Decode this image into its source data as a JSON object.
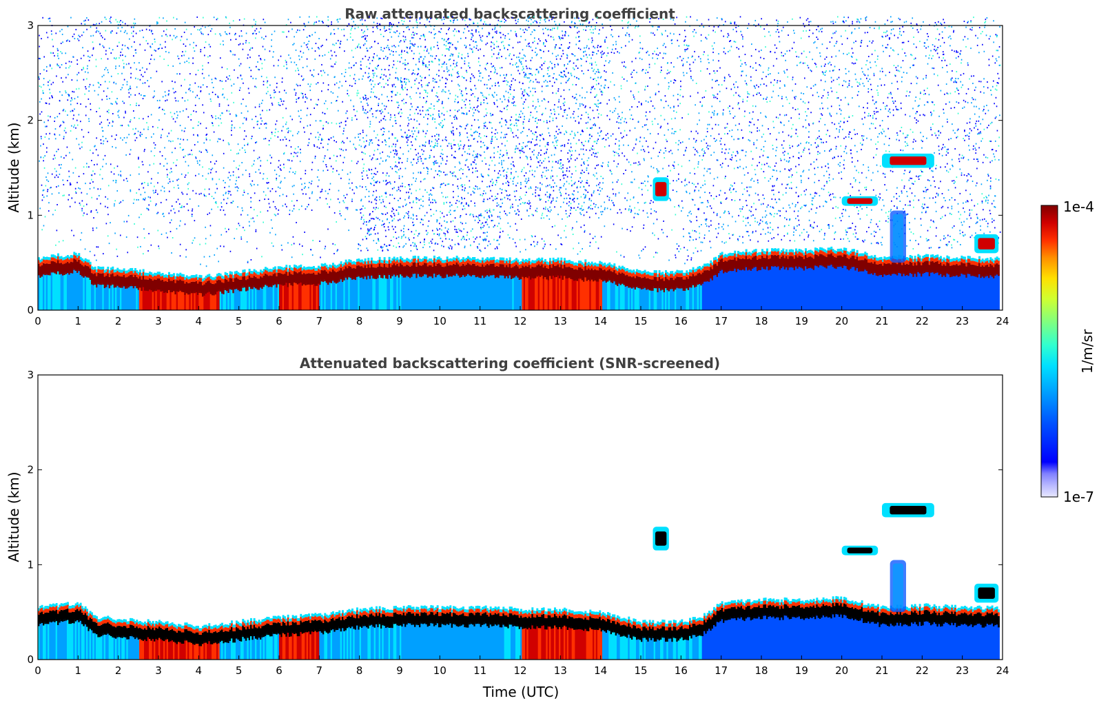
{
  "chart_data": [
    {
      "type": "heatmap",
      "title": "Raw attenuated backscattering coefficient",
      "ylabel": "Altitude (km)",
      "xlabel": "",
      "xlim": [
        0,
        24
      ],
      "ylim": [
        0,
        3
      ],
      "xticks": [
        0,
        1,
        2,
        3,
        4,
        5,
        6,
        7,
        8,
        9,
        10,
        11,
        12,
        13,
        14,
        15,
        16,
        17,
        18,
        19,
        20,
        21,
        22,
        23,
        24
      ],
      "yticks": [
        0,
        1,
        2,
        3
      ],
      "boundary_layer_top_km": [
        [
          0,
          0.5
        ],
        [
          1,
          0.55
        ],
        [
          1.4,
          0.4
        ],
        [
          2,
          0.38
        ],
        [
          3,
          0.35
        ],
        [
          4,
          0.3
        ],
        [
          5,
          0.35
        ],
        [
          6,
          0.4
        ],
        [
          7,
          0.42
        ],
        [
          8,
          0.48
        ],
        [
          9,
          0.5
        ],
        [
          10,
          0.5
        ],
        [
          11,
          0.5
        ],
        [
          12,
          0.48
        ],
        [
          13,
          0.48
        ],
        [
          14,
          0.45
        ],
        [
          15,
          0.35
        ],
        [
          16,
          0.35
        ],
        [
          16.5,
          0.4
        ],
        [
          17,
          0.55
        ],
        [
          18,
          0.58
        ],
        [
          19,
          0.58
        ],
        [
          20,
          0.6
        ],
        [
          21,
          0.5
        ],
        [
          22,
          0.52
        ],
        [
          23,
          0.5
        ],
        [
          24,
          0.5
        ]
      ],
      "features": [
        {
          "kind": "cloud",
          "x": [
            21.0,
            22.3
          ],
          "y_km": [
            1.5,
            1.65
          ]
        },
        {
          "kind": "cloud",
          "x": [
            20.0,
            20.9
          ],
          "y_km": [
            1.1,
            1.2
          ]
        },
        {
          "kind": "cloud",
          "x": [
            15.3,
            15.7
          ],
          "y_km": [
            1.15,
            1.4
          ]
        },
        {
          "kind": "precipitation",
          "x": [
            21.2,
            21.6
          ],
          "y_km": [
            0.5,
            1.05
          ]
        },
        {
          "kind": "cloud",
          "x": [
            23.3,
            23.9
          ],
          "y_km": [
            0.6,
            0.8
          ]
        }
      ]
    },
    {
      "type": "heatmap",
      "title": "Attenuated backscattering coefficient (SNR-screened)",
      "ylabel": "Altitude (km)",
      "xlabel": "Time (UTC)",
      "xlim": [
        0,
        24
      ],
      "ylim": [
        0,
        3
      ],
      "xticks": [
        0,
        1,
        2,
        3,
        4,
        5,
        6,
        7,
        8,
        9,
        10,
        11,
        12,
        13,
        14,
        15,
        16,
        17,
        18,
        19,
        20,
        21,
        22,
        23,
        24
      ],
      "yticks": [
        0,
        1,
        2,
        3
      ]
    }
  ],
  "colorbar": {
    "label": "1/m/sr",
    "max_label": "1e-4",
    "min_label": "1e-7",
    "scale": "log",
    "colors": [
      "#e8e8ff",
      "#b8b8ff",
      "#8080ff",
      "#0000ff",
      "#0050ff",
      "#00a0ff",
      "#00e0ff",
      "#30ffd0",
      "#80ff80",
      "#d0ff30",
      "#ffe000",
      "#ff9000",
      "#ff3000",
      "#d00000",
      "#800000"
    ]
  }
}
